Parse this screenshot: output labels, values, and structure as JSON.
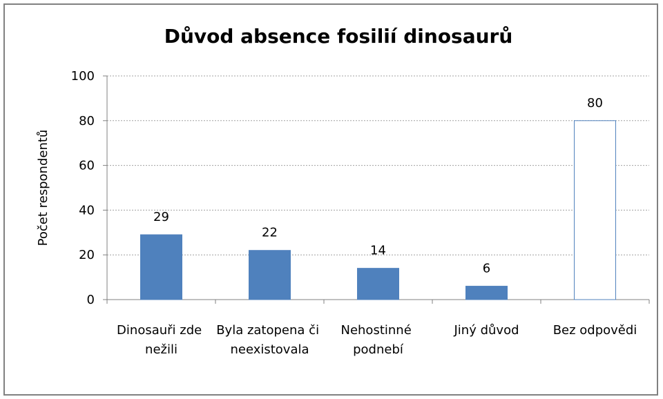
{
  "chart_data": {
    "type": "bar",
    "title": "Důvod absence fosilií dinosaurů",
    "ylabel": "Počet respondentů",
    "categories": [
      "Dinosauři zde nežili",
      "Byla zatopena či neexistovala",
      "Nehostinné podnebí",
      "Jiný důvod",
      "Bez odpovědi"
    ],
    "values": [
      29,
      22,
      14,
      6,
      80
    ],
    "colors": [
      "#4f81bd",
      "#4f81bd",
      "#4f81bd",
      "#4f81bd",
      "#ffffff"
    ],
    "edgecolor": "#4f81bd",
    "ylim": [
      0,
      100
    ],
    "yticks": [
      0,
      20,
      40,
      60,
      80,
      100
    ],
    "grid": true
  }
}
